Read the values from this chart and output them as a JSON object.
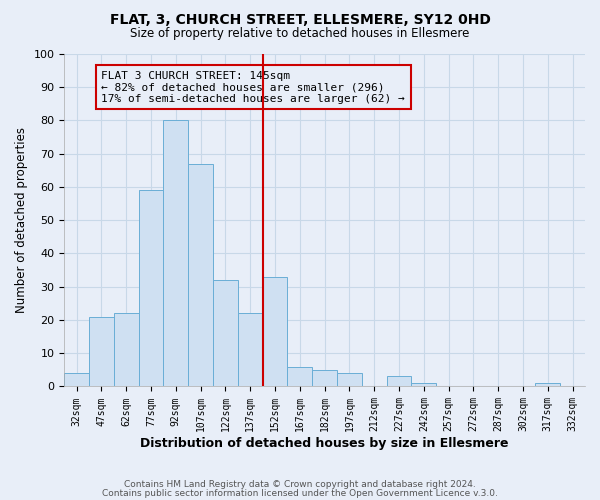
{
  "title": "FLAT, 3, CHURCH STREET, ELLESMERE, SY12 0HD",
  "subtitle": "Size of property relative to detached houses in Ellesmere",
  "xlabel": "Distribution of detached houses by size in Ellesmere",
  "ylabel": "Number of detached properties",
  "bin_labels": [
    "32sqm",
    "47sqm",
    "62sqm",
    "77sqm",
    "92sqm",
    "107sqm",
    "122sqm",
    "137sqm",
    "152sqm",
    "167sqm",
    "182sqm",
    "197sqm",
    "212sqm",
    "227sqm",
    "242sqm",
    "257sqm",
    "272sqm",
    "287sqm",
    "302sqm",
    "317sqm",
    "332sqm"
  ],
  "bar_values": [
    4,
    21,
    22,
    59,
    80,
    67,
    32,
    22,
    33,
    6,
    5,
    4,
    0,
    3,
    1,
    0,
    0,
    0,
    0,
    1,
    0
  ],
  "bar_color": "#cfe0f2",
  "bar_edge_color": "#6aaed6",
  "reference_line_x_label": "152sqm",
  "reference_line_color": "#cc0000",
  "annotation_text": "FLAT 3 CHURCH STREET: 145sqm\n← 82% of detached houses are smaller (296)\n17% of semi-detached houses are larger (62) →",
  "annotation_box_edge_color": "#cc0000",
  "annotation_box_bg": "#e8eef8",
  "ylim": [
    0,
    100
  ],
  "yticks": [
    0,
    10,
    20,
    30,
    40,
    50,
    60,
    70,
    80,
    90,
    100
  ],
  "grid_color": "#c8d8e8",
  "footer_line1": "Contains HM Land Registry data © Crown copyright and database right 2024.",
  "footer_line2": "Contains public sector information licensed under the Open Government Licence v.3.0.",
  "fig_width": 6.0,
  "fig_height": 5.0,
  "bg_color": "#e8eef8"
}
